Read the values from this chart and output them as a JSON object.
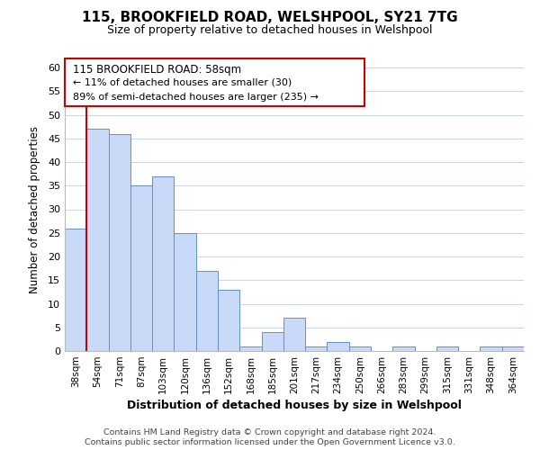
{
  "title": "115, BROOKFIELD ROAD, WELSHPOOL, SY21 7TG",
  "subtitle": "Size of property relative to detached houses in Welshpool",
  "xlabel": "Distribution of detached houses by size in Welshpool",
  "ylabel": "Number of detached properties",
  "footer_line1": "Contains HM Land Registry data © Crown copyright and database right 2024.",
  "footer_line2": "Contains public sector information licensed under the Open Government Licence v3.0.",
  "bar_labels": [
    "38sqm",
    "54sqm",
    "71sqm",
    "87sqm",
    "103sqm",
    "120sqm",
    "136sqm",
    "152sqm",
    "168sqm",
    "185sqm",
    "201sqm",
    "217sqm",
    "234sqm",
    "250sqm",
    "266sqm",
    "283sqm",
    "299sqm",
    "315sqm",
    "331sqm",
    "348sqm",
    "364sqm"
  ],
  "bar_values": [
    26,
    47,
    46,
    35,
    37,
    25,
    17,
    13,
    1,
    4,
    7,
    1,
    2,
    1,
    0,
    1,
    0,
    1,
    0,
    1,
    1
  ],
  "bar_color": "#c9daf8",
  "bar_edge_color": "#6090c8",
  "highlight_color": "#cc0000",
  "ylim": [
    0,
    60
  ],
  "yticks": [
    0,
    5,
    10,
    15,
    20,
    25,
    30,
    35,
    40,
    45,
    50,
    55,
    60
  ],
  "annotation_title": "115 BROOKFIELD ROAD: 58sqm",
  "annotation_line1": "← 11% of detached houses are smaller (30)",
  "annotation_line2": "89% of semi-detached houses are larger (235) →",
  "background_color": "#ffffff",
  "grid_color": "#c8d4e8"
}
